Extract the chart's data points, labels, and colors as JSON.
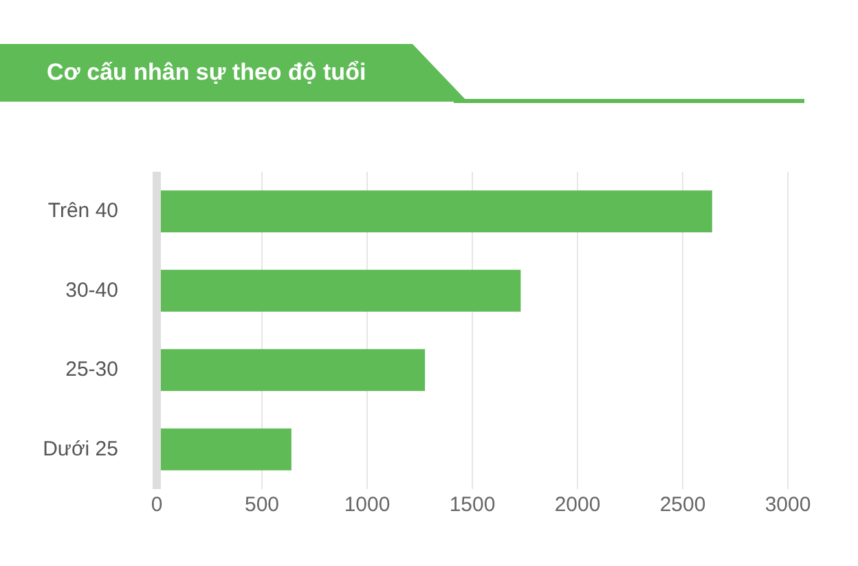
{
  "chart_data": {
    "type": "bar",
    "orientation": "horizontal",
    "title": "Cơ cấu nhân sự theo độ tuổi",
    "categories": [
      "Trên 40",
      "30-40",
      "25-30",
      "Dưới 25"
    ],
    "values": [
      2640,
      1730,
      1275,
      640
    ],
    "color": "#5fbb56",
    "xlim": [
      0,
      3000
    ],
    "xticks": [
      0,
      500,
      1000,
      1500,
      2000,
      2500,
      3000
    ],
    "grid": "x",
    "legend": false
  }
}
